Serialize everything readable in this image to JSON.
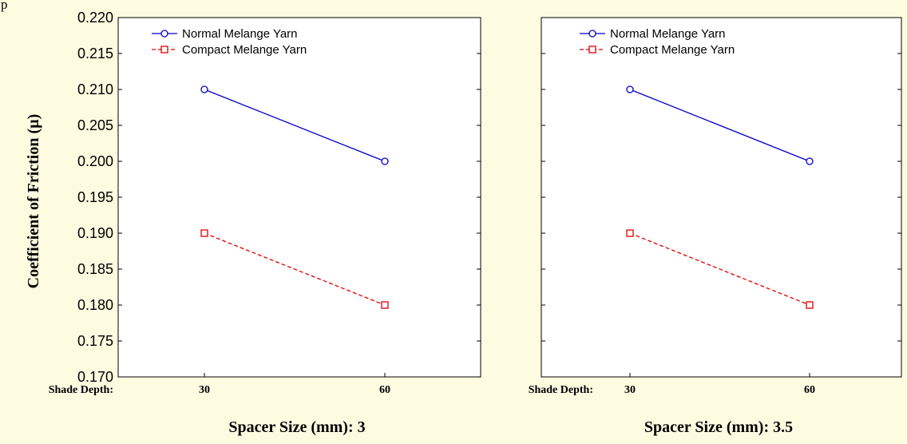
{
  "page_fragment": "p",
  "y_axis_label": "Coefficient of Friction (µ)",
  "y_ticks": [
    "0.220",
    "0.215",
    "0.210",
    "0.205",
    "0.200",
    "0.195",
    "0.190",
    "0.185",
    "0.180",
    "0.175",
    "0.170"
  ],
  "shade_depth_label": "Shade Depth:",
  "colors": {
    "background": "#fdfbe0",
    "plot_area": "#ffffff",
    "normal": "#0000cc",
    "compact": "#e00000"
  },
  "chart_data": [
    {
      "type": "line",
      "title": "Spacer Size (mm): 3",
      "xlabel": "Shade Depth:",
      "ylabel": "Coefficient of Friction (µ)",
      "categories": [
        "30",
        "60"
      ],
      "ylim": [
        0.17,
        0.22
      ],
      "grid": false,
      "legend": "top-left",
      "series": [
        {
          "name": "Normal Melange Yarn",
          "values": [
            0.21,
            0.2
          ],
          "color": "#0000cc",
          "marker": "circle",
          "line": "solid"
        },
        {
          "name": "Compact Melange Yarn",
          "values": [
            0.19,
            0.18
          ],
          "color": "#e00000",
          "marker": "square",
          "line": "dashed"
        }
      ]
    },
    {
      "type": "line",
      "title": "Spacer Size (mm): 3.5",
      "xlabel": "Shade Depth:",
      "categories": [
        "30",
        "60"
      ],
      "ylim": [
        0.17,
        0.22
      ],
      "grid": false,
      "legend": "top-left",
      "series": [
        {
          "name": "Normal Melange Yarn",
          "values": [
            0.21,
            0.2
          ],
          "color": "#0000cc",
          "marker": "circle",
          "line": "solid"
        },
        {
          "name": "Compact Melange Yarn",
          "values": [
            0.19,
            0.18
          ],
          "color": "#e00000",
          "marker": "square",
          "line": "dashed"
        }
      ]
    }
  ]
}
